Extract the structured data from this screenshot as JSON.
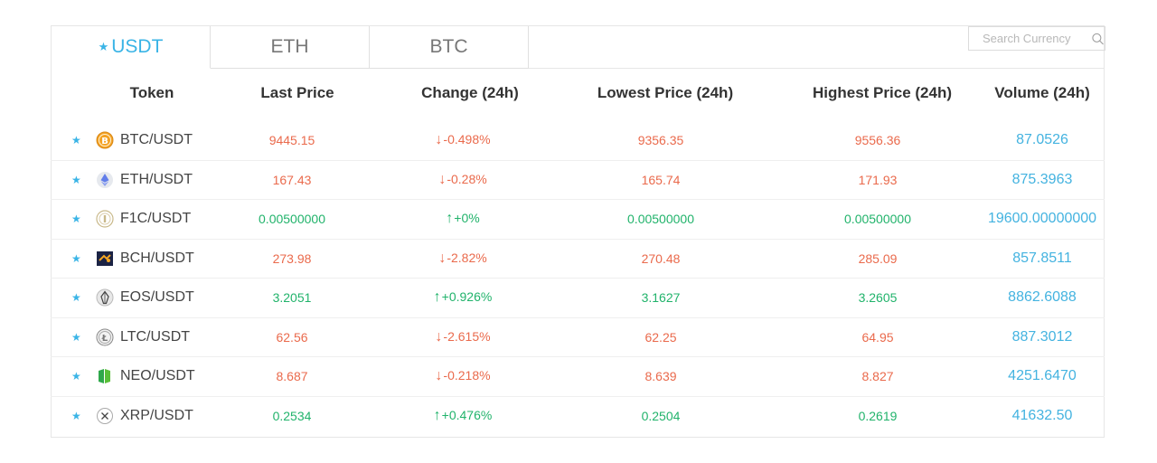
{
  "tabs": [
    {
      "label": "USDT",
      "starred": true,
      "active": true
    },
    {
      "label": "ETH",
      "starred": false,
      "active": false
    },
    {
      "label": "BTC",
      "starred": false,
      "active": false
    }
  ],
  "search": {
    "placeholder": "Search Currency"
  },
  "columns": [
    "Token",
    "Last Price",
    "Change (24h)",
    "Lowest Price (24h)",
    "Highest Price (24h)",
    "Volume (24h)"
  ],
  "rows": [
    {
      "pair": "BTC/USDT",
      "icon": "bitcoin-icon",
      "last": "9445.15",
      "change": "-0.498%",
      "dir": "down",
      "low": "9356.35",
      "high": "9556.36",
      "volume": "87.0526"
    },
    {
      "pair": "ETH/USDT",
      "icon": "ethereum-icon",
      "last": "167.43",
      "change": "-0.28%",
      "dir": "down",
      "low": "165.74",
      "high": "171.93",
      "volume": "875.3963"
    },
    {
      "pair": "F1C/USDT",
      "icon": "f1c-icon",
      "last": "0.00500000",
      "change": "+0%",
      "dir": "up",
      "low": "0.00500000",
      "high": "0.00500000",
      "volume": "19600.00000000"
    },
    {
      "pair": "BCH/USDT",
      "icon": "bitcoin-cash-icon",
      "last": "273.98",
      "change": "-2.82%",
      "dir": "down",
      "low": "270.48",
      "high": "285.09",
      "volume": "857.8511"
    },
    {
      "pair": "EOS/USDT",
      "icon": "eos-icon",
      "last": "3.2051",
      "change": "+0.926%",
      "dir": "up",
      "low": "3.1627",
      "high": "3.2605",
      "volume": "8862.6088"
    },
    {
      "pair": "LTC/USDT",
      "icon": "litecoin-icon",
      "last": "62.56",
      "change": "-2.615%",
      "dir": "down",
      "low": "62.25",
      "high": "64.95",
      "volume": "887.3012"
    },
    {
      "pair": "NEO/USDT",
      "icon": "neo-icon",
      "last": "8.687",
      "change": "-0.218%",
      "dir": "down",
      "low": "8.639",
      "high": "8.827",
      "volume": "4251.6470"
    },
    {
      "pair": "XRP/USDT",
      "icon": "ripple-icon",
      "last": "0.2534",
      "change": "+0.476%",
      "dir": "up",
      "low": "0.2504",
      "high": "0.2619",
      "volume": "41632.50"
    }
  ],
  "colors": {
    "accent": "#3ab4e6",
    "down": "#ea6a4c",
    "up": "#21b36b"
  }
}
